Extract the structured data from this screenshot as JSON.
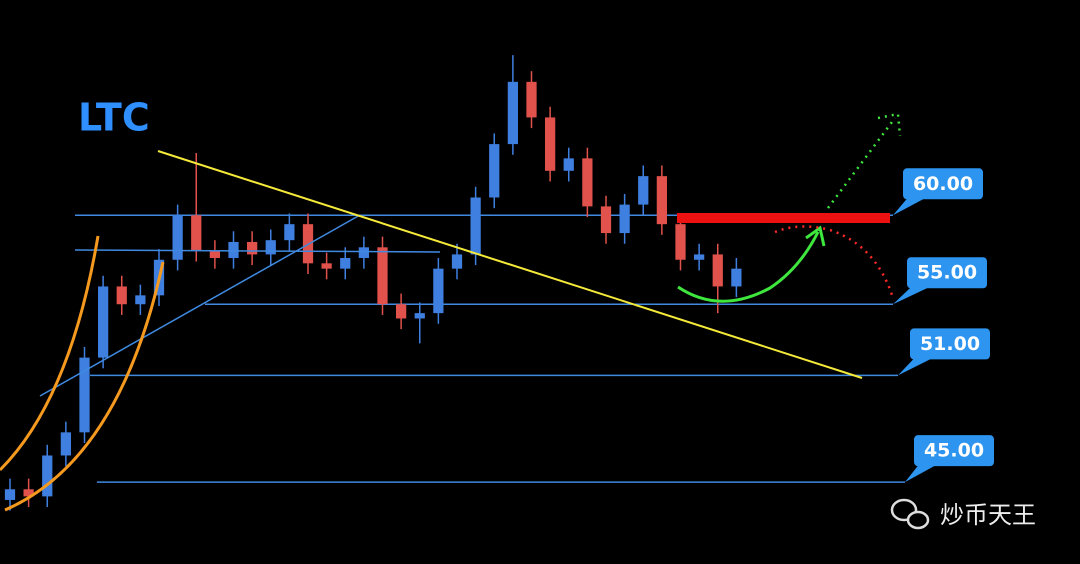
{
  "chart_data": {
    "type": "candlestick",
    "title": "LTC",
    "ylim": [
      40.4,
      72.1
    ],
    "up_color": "#3f7fe0",
    "down_color": "#e0524b",
    "open": [
      44.0,
      44.6,
      44.2,
      46.5,
      47.8,
      52.0,
      56.0,
      55.0,
      55.5,
      57.5,
      60.0,
      58.0,
      57.6,
      58.5,
      57.8,
      58.6,
      59.5,
      57.3,
      57.0,
      57.6,
      58.2,
      55.0,
      54.2,
      54.5,
      57.0,
      57.8,
      61.0,
      64.0,
      67.5,
      65.5,
      62.5,
      63.2,
      60.5,
      59.0,
      60.6,
      62.2,
      59.5,
      57.5,
      57.8,
      56.0
    ],
    "high": [
      45.2,
      45.2,
      47.1,
      48.4,
      52.6,
      56.6,
      56.6,
      56.1,
      58.1,
      60.6,
      63.5,
      58.6,
      59.1,
      59.1,
      59.2,
      60.1,
      60.1,
      57.9,
      58.2,
      58.8,
      58.8,
      55.6,
      55.1,
      57.6,
      58.4,
      61.6,
      64.6,
      69.0,
      68.1,
      66.1,
      63.8,
      63.8,
      61.1,
      61.2,
      62.8,
      62.8,
      60.1,
      58.4,
      58.4,
      57.6
    ],
    "low": [
      43.4,
      43.6,
      43.6,
      45.9,
      47.2,
      51.4,
      54.4,
      54.4,
      54.9,
      56.9,
      57.4,
      57.0,
      57.0,
      57.2,
      57.2,
      58.0,
      56.7,
      56.4,
      56.4,
      57.0,
      54.4,
      53.6,
      52.8,
      53.9,
      56.4,
      57.2,
      60.4,
      63.4,
      64.9,
      61.9,
      61.9,
      59.9,
      58.4,
      58.4,
      60.0,
      58.9,
      56.9,
      56.9,
      54.5,
      55.4
    ],
    "close": [
      44.6,
      44.2,
      46.5,
      47.8,
      52.0,
      56.0,
      55.0,
      55.5,
      57.5,
      60.0,
      58.0,
      57.6,
      58.5,
      57.8,
      58.6,
      59.5,
      57.3,
      57.0,
      57.6,
      58.2,
      55.0,
      54.2,
      54.5,
      57.0,
      57.8,
      61.0,
      64.0,
      67.5,
      65.5,
      62.5,
      63.2,
      60.5,
      59.0,
      60.6,
      62.2,
      59.5,
      57.5,
      57.8,
      56.0,
      57.0
    ],
    "levels": [
      {
        "value": 60,
        "label": "60.00"
      },
      {
        "value": 55,
        "label": "55.00"
      },
      {
        "value": 51,
        "label": "51.00"
      },
      {
        "value": 45,
        "label": "45.00"
      }
    ],
    "watermark": "炒币天王"
  }
}
